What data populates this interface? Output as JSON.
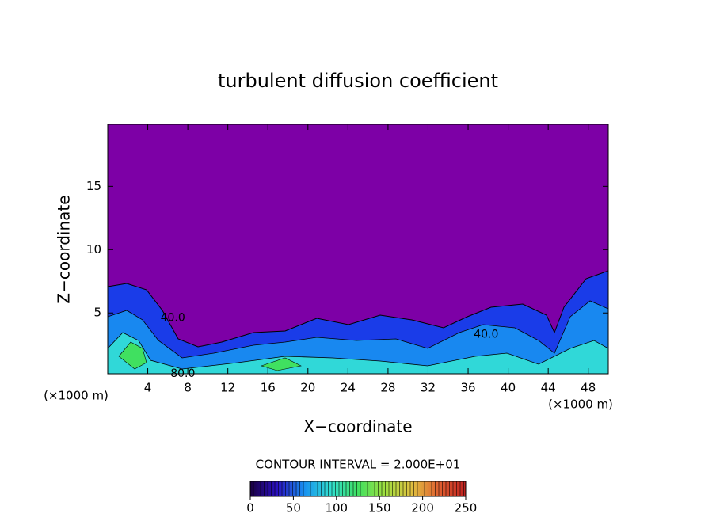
{
  "chart_data": {
    "type": "contour",
    "title": "turbulent diffusion coefficient",
    "xlabel": "X−coordinate",
    "ylabel": "Z−coordinate",
    "x_unit_label": "(×1000 m)",
    "xlim": [
      0,
      50
    ],
    "ylim": [
      0.2,
      19.9
    ],
    "xticks": [
      4,
      8,
      12,
      16,
      20,
      24,
      28,
      32,
      36,
      40,
      44,
      48
    ],
    "yticks": [
      5,
      10,
      15
    ],
    "field_color": "#7d00a6",
    "annotations": [
      {
        "text": "40.0",
        "x": 37.8,
        "y": 3.3
      },
      {
        "text": "40.0",
        "x": 6.5,
        "y": 4.6
      },
      {
        "text": "80.0",
        "x": 7.5,
        "y": 0.2
      }
    ],
    "colorbar": {
      "label": "CONTOUR INTERVAL = 2.000E+01",
      "lim": [
        0,
        250
      ],
      "ticks": [
        0,
        50,
        100,
        150,
        200,
        250
      ],
      "colormap": [
        "#1a0040",
        "#2a10c0",
        "#1890f0",
        "#30e0d0",
        "#40e060",
        "#a0e040",
        "#e0c040",
        "#e06030",
        "#c02020"
      ]
    }
  }
}
